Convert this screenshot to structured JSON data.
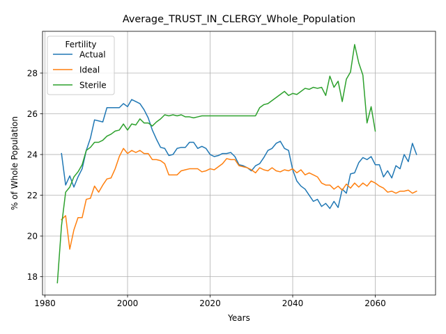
{
  "chart_data": {
    "type": "line",
    "title": "Average_TRUST_IN_CLERGY_Whole_Population",
    "xlabel": "Years",
    "ylabel": "% of Whole Population",
    "xlim": [
      1979.4,
      2074.6
    ],
    "ylim": [
      17.1,
      30.05
    ],
    "xticks": [
      1980,
      2000,
      2020,
      2040,
      2060
    ],
    "yticks": [
      18,
      20,
      22,
      24,
      26,
      28
    ],
    "grid": true,
    "legend": {
      "title": "Fertility",
      "placement": "upper-left"
    },
    "series": [
      {
        "name": "Actual",
        "color": "#1f77b4",
        "points": [
          [
            1984,
            24.05
          ],
          [
            1985,
            22.5
          ],
          [
            1986,
            22.95
          ],
          [
            1987,
            22.4
          ],
          [
            1988,
            22.9
          ],
          [
            1989,
            23.3
          ],
          [
            1990,
            24.2
          ],
          [
            1991,
            24.8
          ],
          [
            1992,
            25.7
          ],
          [
            1993,
            25.65
          ],
          [
            1994,
            25.6
          ],
          [
            1995,
            26.3
          ],
          [
            1996,
            26.3
          ],
          [
            1997,
            26.3
          ],
          [
            1998,
            26.3
          ],
          [
            1999,
            26.5
          ],
          [
            2000,
            26.35
          ],
          [
            2001,
            26.7
          ],
          [
            2002,
            26.6
          ],
          [
            2003,
            26.5
          ],
          [
            2004,
            26.2
          ],
          [
            2005,
            25.8
          ],
          [
            2006,
            25.2
          ],
          [
            2007,
            24.75
          ],
          [
            2008,
            24.35
          ],
          [
            2009,
            24.3
          ],
          [
            2010,
            23.95
          ],
          [
            2011,
            24.0
          ],
          [
            2012,
            24.3
          ],
          [
            2013,
            24.35
          ],
          [
            2014,
            24.35
          ],
          [
            2015,
            24.6
          ],
          [
            2016,
            24.6
          ],
          [
            2017,
            24.3
          ],
          [
            2018,
            24.4
          ],
          [
            2019,
            24.3
          ],
          [
            2020,
            24.0
          ],
          [
            2021,
            23.9
          ],
          [
            2022,
            23.95
          ],
          [
            2023,
            24.05
          ],
          [
            2024,
            24.05
          ],
          [
            2025,
            24.1
          ],
          [
            2026,
            23.9
          ],
          [
            2027,
            23.5
          ],
          [
            2028,
            23.45
          ],
          [
            2029,
            23.35
          ],
          [
            2030,
            23.2
          ],
          [
            2031,
            23.45
          ],
          [
            2032,
            23.55
          ],
          [
            2033,
            23.85
          ],
          [
            2034,
            24.2
          ],
          [
            2035,
            24.3
          ],
          [
            2036,
            24.55
          ],
          [
            2037,
            24.65
          ],
          [
            2038,
            24.3
          ],
          [
            2039,
            24.2
          ],
          [
            2040,
            23.25
          ],
          [
            2041,
            22.7
          ],
          [
            2042,
            22.45
          ],
          [
            2043,
            22.3
          ],
          [
            2044,
            22.0
          ],
          [
            2045,
            21.7
          ],
          [
            2046,
            21.8
          ],
          [
            2047,
            21.45
          ],
          [
            2048,
            21.6
          ],
          [
            2049,
            21.35
          ],
          [
            2050,
            21.7
          ],
          [
            2051,
            21.4
          ],
          [
            2052,
            22.3
          ],
          [
            2053,
            22.1
          ],
          [
            2054,
            23.05
          ],
          [
            2055,
            23.1
          ],
          [
            2056,
            23.6
          ],
          [
            2057,
            23.85
          ],
          [
            2058,
            23.75
          ],
          [
            2059,
            23.9
          ],
          [
            2060,
            23.5
          ],
          [
            2061,
            23.5
          ],
          [
            2062,
            22.9
          ],
          [
            2063,
            23.2
          ],
          [
            2064,
            22.85
          ],
          [
            2065,
            23.45
          ],
          [
            2066,
            23.3
          ],
          [
            2067,
            24.0
          ],
          [
            2068,
            23.65
          ],
          [
            2069,
            24.55
          ],
          [
            2070,
            24.0
          ]
        ]
      },
      {
        "name": "Ideal",
        "color": "#ff7f0e",
        "points": [
          [
            1984,
            20.8
          ],
          [
            1985,
            21.0
          ],
          [
            1986,
            19.35
          ],
          [
            1987,
            20.3
          ],
          [
            1988,
            20.9
          ],
          [
            1989,
            20.9
          ],
          [
            1990,
            21.8
          ],
          [
            1991,
            21.85
          ],
          [
            1992,
            22.45
          ],
          [
            1993,
            22.15
          ],
          [
            1994,
            22.5
          ],
          [
            1995,
            22.8
          ],
          [
            1996,
            22.85
          ],
          [
            1997,
            23.3
          ],
          [
            1998,
            23.9
          ],
          [
            1999,
            24.3
          ],
          [
            2000,
            24.05
          ],
          [
            2001,
            24.2
          ],
          [
            2002,
            24.1
          ],
          [
            2003,
            24.2
          ],
          [
            2004,
            24.05
          ],
          [
            2005,
            24.05
          ],
          [
            2006,
            23.75
          ],
          [
            2007,
            23.75
          ],
          [
            2008,
            23.7
          ],
          [
            2009,
            23.55
          ],
          [
            2010,
            23.0
          ],
          [
            2011,
            23.0
          ],
          [
            2012,
            23.0
          ],
          [
            2013,
            23.2
          ],
          [
            2014,
            23.25
          ],
          [
            2015,
            23.3
          ],
          [
            2016,
            23.3
          ],
          [
            2017,
            23.3
          ],
          [
            2018,
            23.15
          ],
          [
            2019,
            23.2
          ],
          [
            2020,
            23.3
          ],
          [
            2021,
            23.25
          ],
          [
            2022,
            23.4
          ],
          [
            2023,
            23.55
          ],
          [
            2024,
            23.8
          ],
          [
            2025,
            23.75
          ],
          [
            2026,
            23.75
          ],
          [
            2027,
            23.45
          ],
          [
            2028,
            23.4
          ],
          [
            2029,
            23.35
          ],
          [
            2030,
            23.25
          ],
          [
            2031,
            23.1
          ],
          [
            2032,
            23.35
          ],
          [
            2033,
            23.25
          ],
          [
            2034,
            23.2
          ],
          [
            2035,
            23.35
          ],
          [
            2036,
            23.2
          ],
          [
            2037,
            23.15
          ],
          [
            2038,
            23.25
          ],
          [
            2039,
            23.2
          ],
          [
            2040,
            23.3
          ],
          [
            2041,
            23.1
          ],
          [
            2042,
            23.25
          ],
          [
            2043,
            23.0
          ],
          [
            2044,
            23.1
          ],
          [
            2045,
            23.0
          ],
          [
            2046,
            22.9
          ],
          [
            2047,
            22.6
          ],
          [
            2048,
            22.5
          ],
          [
            2049,
            22.5
          ],
          [
            2050,
            22.3
          ],
          [
            2051,
            22.45
          ],
          [
            2052,
            22.25
          ],
          [
            2053,
            22.55
          ],
          [
            2054,
            22.35
          ],
          [
            2055,
            22.6
          ],
          [
            2056,
            22.4
          ],
          [
            2057,
            22.6
          ],
          [
            2058,
            22.45
          ],
          [
            2059,
            22.7
          ],
          [
            2060,
            22.6
          ],
          [
            2061,
            22.45
          ],
          [
            2062,
            22.35
          ],
          [
            2063,
            22.15
          ],
          [
            2064,
            22.2
          ],
          [
            2065,
            22.1
          ],
          [
            2066,
            22.2
          ],
          [
            2067,
            22.2
          ],
          [
            2068,
            22.25
          ],
          [
            2069,
            22.1
          ],
          [
            2070,
            22.2
          ]
        ]
      },
      {
        "name": "Sterile",
        "color": "#2ca02c",
        "points": [
          [
            1983,
            17.7
          ],
          [
            1984,
            20.5
          ],
          [
            1985,
            22.15
          ],
          [
            1986,
            22.4
          ],
          [
            1987,
            22.9
          ],
          [
            1988,
            23.15
          ],
          [
            1989,
            23.5
          ],
          [
            1990,
            24.2
          ],
          [
            1991,
            24.35
          ],
          [
            1992,
            24.6
          ],
          [
            1993,
            24.6
          ],
          [
            1994,
            24.7
          ],
          [
            1995,
            24.9
          ],
          [
            1996,
            25.0
          ],
          [
            1997,
            25.15
          ],
          [
            1998,
            25.2
          ],
          [
            1999,
            25.5
          ],
          [
            2000,
            25.2
          ],
          [
            2001,
            25.5
          ],
          [
            2002,
            25.45
          ],
          [
            2003,
            25.75
          ],
          [
            2004,
            25.55
          ],
          [
            2005,
            25.55
          ],
          [
            2006,
            25.4
          ],
          [
            2007,
            25.6
          ],
          [
            2008,
            25.75
          ],
          [
            2009,
            25.95
          ],
          [
            2010,
            25.9
          ],
          [
            2011,
            25.95
          ],
          [
            2012,
            25.9
          ],
          [
            2013,
            25.95
          ],
          [
            2014,
            25.85
          ],
          [
            2015,
            25.85
          ],
          [
            2016,
            25.8
          ],
          [
            2017,
            25.85
          ],
          [
            2018,
            25.9
          ],
          [
            2019,
            25.9
          ],
          [
            2020,
            25.9
          ],
          [
            2021,
            25.9
          ],
          [
            2022,
            25.9
          ],
          [
            2023,
            25.9
          ],
          [
            2024,
            25.9
          ],
          [
            2025,
            25.9
          ],
          [
            2026,
            25.9
          ],
          [
            2027,
            25.9
          ],
          [
            2028,
            25.9
          ],
          [
            2029,
            25.9
          ],
          [
            2030,
            25.9
          ],
          [
            2031,
            25.9
          ],
          [
            2032,
            26.3
          ],
          [
            2033,
            26.45
          ],
          [
            2034,
            26.5
          ],
          [
            2035,
            26.65
          ],
          [
            2036,
            26.8
          ],
          [
            2037,
            26.95
          ],
          [
            2038,
            27.1
          ],
          [
            2039,
            26.9
          ],
          [
            2040,
            27.0
          ],
          [
            2041,
            26.95
          ],
          [
            2042,
            27.1
          ],
          [
            2043,
            27.25
          ],
          [
            2044,
            27.2
          ],
          [
            2045,
            27.3
          ],
          [
            2046,
            27.25
          ],
          [
            2047,
            27.3
          ],
          [
            2048,
            26.9
          ],
          [
            2049,
            27.85
          ],
          [
            2050,
            27.3
          ],
          [
            2051,
            27.6
          ],
          [
            2052,
            26.6
          ],
          [
            2053,
            27.7
          ],
          [
            2054,
            28.05
          ],
          [
            2055,
            29.4
          ],
          [
            2056,
            28.5
          ],
          [
            2057,
            27.9
          ],
          [
            2058,
            25.55
          ],
          [
            2059,
            26.35
          ],
          [
            2060,
            25.15
          ]
        ]
      }
    ]
  }
}
